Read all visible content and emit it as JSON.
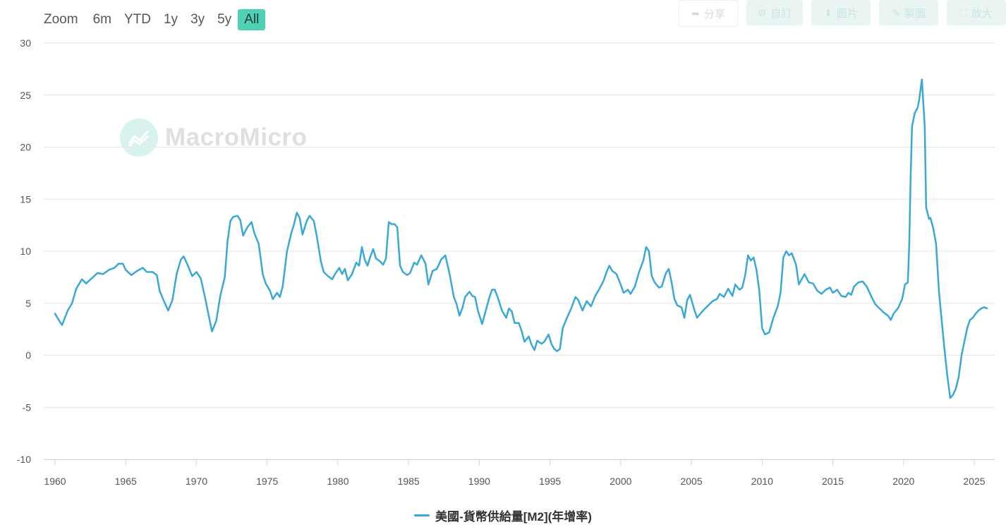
{
  "zoom": {
    "label": "Zoom",
    "buttons": [
      {
        "label": "6m",
        "active": false
      },
      {
        "label": "YTD",
        "active": false
      },
      {
        "label": "1y",
        "active": false
      },
      {
        "label": "3y",
        "active": false
      },
      {
        "label": "5y",
        "active": false
      },
      {
        "label": "All",
        "active": true
      }
    ]
  },
  "toolbar": {
    "share_label": "分享",
    "custom_label": "自訂",
    "image_label": "圖片",
    "draw_label": "製圖",
    "enlarge_label": "放大"
  },
  "watermark": {
    "text": "MacroMicro"
  },
  "colors": {
    "line": "#3aa8d6",
    "accent": "#4fd1b6",
    "grid": "#e6e6e6"
  },
  "chart_data": {
    "type": "line",
    "title": "",
    "xlabel": "",
    "ylabel": "",
    "xlim": [
      1960,
      2025.9
    ],
    "ylim": [
      -10,
      30
    ],
    "x_ticks": [
      1960,
      1965,
      1970,
      1975,
      1980,
      1985,
      1990,
      1995,
      2000,
      2005,
      2010,
      2015,
      2020,
      2025
    ],
    "y_ticks": [
      -10,
      -5,
      0,
      5,
      10,
      15,
      20,
      25,
      30
    ],
    "grid": "horizontal",
    "legend_position": "bottom-center",
    "series": [
      {
        "name": "美國-貨幣供給量[M2](年增率)",
        "color": "#3aa8d6",
        "points": [
          [
            1960.0,
            4.0
          ],
          [
            1960.3,
            3.3
          ],
          [
            1960.5,
            2.9
          ],
          [
            1960.9,
            4.3
          ],
          [
            1961.2,
            5.0
          ],
          [
            1961.5,
            6.4
          ],
          [
            1961.9,
            7.3
          ],
          [
            1962.2,
            6.9
          ],
          [
            1962.6,
            7.4
          ],
          [
            1963.0,
            7.9
          ],
          [
            1963.4,
            7.8
          ],
          [
            1963.8,
            8.2
          ],
          [
            1964.2,
            8.4
          ],
          [
            1964.5,
            8.8
          ],
          [
            1964.8,
            8.8
          ],
          [
            1965.0,
            8.2
          ],
          [
            1965.4,
            7.7
          ],
          [
            1965.8,
            8.1
          ],
          [
            1966.2,
            8.4
          ],
          [
            1966.5,
            8.0
          ],
          [
            1966.9,
            8.0
          ],
          [
            1967.2,
            7.7
          ],
          [
            1967.4,
            6.2
          ],
          [
            1967.7,
            5.2
          ],
          [
            1968.0,
            4.3
          ],
          [
            1968.3,
            5.3
          ],
          [
            1968.6,
            7.8
          ],
          [
            1968.9,
            9.2
          ],
          [
            1969.1,
            9.5
          ],
          [
            1969.4,
            8.6
          ],
          [
            1969.7,
            7.6
          ],
          [
            1970.0,
            8.0
          ],
          [
            1970.3,
            7.4
          ],
          [
            1970.6,
            5.6
          ],
          [
            1970.9,
            3.6
          ],
          [
            1971.1,
            2.3
          ],
          [
            1971.4,
            3.3
          ],
          [
            1971.7,
            5.8
          ],
          [
            1972.0,
            7.5
          ],
          [
            1972.2,
            11.0
          ],
          [
            1972.4,
            12.9
          ],
          [
            1972.6,
            13.3
          ],
          [
            1972.9,
            13.4
          ],
          [
            1973.1,
            13.0
          ],
          [
            1973.3,
            11.5
          ],
          [
            1973.6,
            12.3
          ],
          [
            1973.9,
            12.8
          ],
          [
            1974.1,
            11.7
          ],
          [
            1974.4,
            10.7
          ],
          [
            1974.7,
            7.7
          ],
          [
            1974.9,
            6.9
          ],
          [
            1975.2,
            6.2
          ],
          [
            1975.4,
            5.4
          ],
          [
            1975.7,
            6.0
          ],
          [
            1975.9,
            5.6
          ],
          [
            1976.1,
            6.6
          ],
          [
            1976.4,
            10.0
          ],
          [
            1976.7,
            11.7
          ],
          [
            1976.9,
            12.6
          ],
          [
            1977.1,
            13.7
          ],
          [
            1977.3,
            13.2
          ],
          [
            1977.5,
            11.6
          ],
          [
            1977.8,
            12.9
          ],
          [
            1978.0,
            13.4
          ],
          [
            1978.3,
            12.9
          ],
          [
            1978.5,
            11.5
          ],
          [
            1978.8,
            9.0
          ],
          [
            1979.0,
            8.0
          ],
          [
            1979.3,
            7.6
          ],
          [
            1979.6,
            7.3
          ],
          [
            1979.8,
            7.8
          ],
          [
            1980.1,
            8.4
          ],
          [
            1980.3,
            7.8
          ],
          [
            1980.5,
            8.3
          ],
          [
            1980.7,
            7.2
          ],
          [
            1981.0,
            7.8
          ],
          [
            1981.3,
            8.9
          ],
          [
            1981.5,
            8.6
          ],
          [
            1981.7,
            10.4
          ],
          [
            1981.9,
            9.2
          ],
          [
            1982.1,
            8.6
          ],
          [
            1982.3,
            9.5
          ],
          [
            1982.5,
            10.2
          ],
          [
            1982.7,
            9.3
          ],
          [
            1983.0,
            9.0
          ],
          [
            1983.2,
            8.7
          ],
          [
            1983.4,
            9.3
          ],
          [
            1983.6,
            12.8
          ],
          [
            1983.8,
            12.6
          ],
          [
            1984.0,
            12.6
          ],
          [
            1984.2,
            12.3
          ],
          [
            1984.4,
            8.6
          ],
          [
            1984.6,
            8.0
          ],
          [
            1984.9,
            7.7
          ],
          [
            1985.1,
            7.9
          ],
          [
            1985.4,
            8.9
          ],
          [
            1985.6,
            8.7
          ],
          [
            1985.9,
            9.6
          ],
          [
            1986.2,
            8.8
          ],
          [
            1986.4,
            6.8
          ],
          [
            1986.7,
            8.1
          ],
          [
            1987.0,
            8.3
          ],
          [
            1987.3,
            9.2
          ],
          [
            1987.6,
            9.6
          ],
          [
            1987.9,
            7.8
          ],
          [
            1988.2,
            5.6
          ],
          [
            1988.4,
            4.9
          ],
          [
            1988.6,
            3.8
          ],
          [
            1988.8,
            4.5
          ],
          [
            1989.0,
            5.6
          ],
          [
            1989.3,
            6.1
          ],
          [
            1989.5,
            5.7
          ],
          [
            1989.7,
            5.6
          ],
          [
            1989.9,
            4.3
          ],
          [
            1990.2,
            3.0
          ],
          [
            1990.4,
            4.0
          ],
          [
            1990.7,
            5.5
          ],
          [
            1990.9,
            6.3
          ],
          [
            1991.1,
            6.3
          ],
          [
            1991.3,
            5.6
          ],
          [
            1991.6,
            4.3
          ],
          [
            1991.9,
            3.6
          ],
          [
            1992.1,
            4.5
          ],
          [
            1992.3,
            4.2
          ],
          [
            1992.5,
            3.1
          ],
          [
            1992.8,
            3.1
          ],
          [
            1993.0,
            2.3
          ],
          [
            1993.2,
            1.3
          ],
          [
            1993.5,
            1.8
          ],
          [
            1993.7,
            1.0
          ],
          [
            1993.9,
            0.5
          ],
          [
            1994.1,
            1.4
          ],
          [
            1994.4,
            1.1
          ],
          [
            1994.6,
            1.3
          ],
          [
            1994.9,
            2.0
          ],
          [
            1995.1,
            1.1
          ],
          [
            1995.3,
            0.6
          ],
          [
            1995.5,
            0.4
          ],
          [
            1995.7,
            0.6
          ],
          [
            1995.9,
            2.6
          ],
          [
            1996.2,
            3.6
          ],
          [
            1996.5,
            4.5
          ],
          [
            1996.8,
            5.6
          ],
          [
            1997.0,
            5.3
          ],
          [
            1997.3,
            4.3
          ],
          [
            1997.6,
            5.2
          ],
          [
            1997.9,
            4.7
          ],
          [
            1998.2,
            5.7
          ],
          [
            1998.5,
            6.4
          ],
          [
            1998.8,
            7.2
          ],
          [
            1999.0,
            8.0
          ],
          [
            1999.2,
            8.6
          ],
          [
            1999.4,
            8.1
          ],
          [
            1999.7,
            7.8
          ],
          [
            2000.0,
            6.8
          ],
          [
            2000.2,
            6.0
          ],
          [
            2000.5,
            6.3
          ],
          [
            2000.7,
            5.9
          ],
          [
            2001.0,
            6.6
          ],
          [
            2001.3,
            8.0
          ],
          [
            2001.6,
            9.1
          ],
          [
            2001.8,
            10.4
          ],
          [
            2002.0,
            10.0
          ],
          [
            2002.2,
            7.6
          ],
          [
            2002.4,
            7.0
          ],
          [
            2002.7,
            6.5
          ],
          [
            2002.9,
            6.6
          ],
          [
            2003.2,
            7.9
          ],
          [
            2003.4,
            8.3
          ],
          [
            2003.6,
            7.0
          ],
          [
            2003.8,
            5.4
          ],
          [
            2004.0,
            4.8
          ],
          [
            2004.3,
            4.6
          ],
          [
            2004.5,
            3.6
          ],
          [
            2004.7,
            5.3
          ],
          [
            2004.9,
            5.8
          ],
          [
            2005.2,
            4.4
          ],
          [
            2005.4,
            3.6
          ],
          [
            2005.7,
            4.1
          ],
          [
            2005.9,
            4.4
          ],
          [
            2006.2,
            4.8
          ],
          [
            2006.5,
            5.2
          ],
          [
            2006.8,
            5.4
          ],
          [
            2007.0,
            5.9
          ],
          [
            2007.3,
            5.6
          ],
          [
            2007.6,
            6.4
          ],
          [
            2007.9,
            5.7
          ],
          [
            2008.1,
            6.8
          ],
          [
            2008.4,
            6.3
          ],
          [
            2008.6,
            6.5
          ],
          [
            2008.8,
            7.7
          ],
          [
            2009.0,
            9.6
          ],
          [
            2009.2,
            9.1
          ],
          [
            2009.4,
            9.4
          ],
          [
            2009.6,
            8.2
          ],
          [
            2009.8,
            6.2
          ],
          [
            2010.0,
            2.6
          ],
          [
            2010.2,
            2.0
          ],
          [
            2010.5,
            2.2
          ],
          [
            2010.8,
            3.6
          ],
          [
            2011.1,
            4.7
          ],
          [
            2011.3,
            6.0
          ],
          [
            2011.5,
            9.4
          ],
          [
            2011.7,
            10.0
          ],
          [
            2011.9,
            9.6
          ],
          [
            2012.1,
            9.8
          ],
          [
            2012.4,
            8.7
          ],
          [
            2012.6,
            6.8
          ],
          [
            2012.8,
            7.3
          ],
          [
            2013.0,
            7.8
          ],
          [
            2013.3,
            7.0
          ],
          [
            2013.6,
            6.9
          ],
          [
            2013.9,
            6.2
          ],
          [
            2014.2,
            5.9
          ],
          [
            2014.5,
            6.3
          ],
          [
            2014.8,
            6.5
          ],
          [
            2015.0,
            6.0
          ],
          [
            2015.3,
            6.3
          ],
          [
            2015.6,
            5.7
          ],
          [
            2015.9,
            5.6
          ],
          [
            2016.1,
            6.0
          ],
          [
            2016.3,
            5.8
          ],
          [
            2016.5,
            6.6
          ],
          [
            2016.8,
            7.0
          ],
          [
            2017.1,
            7.1
          ],
          [
            2017.4,
            6.6
          ],
          [
            2017.7,
            5.7
          ],
          [
            2018.0,
            4.9
          ],
          [
            2018.3,
            4.5
          ],
          [
            2018.6,
            4.1
          ],
          [
            2018.9,
            3.8
          ],
          [
            2019.1,
            3.4
          ],
          [
            2019.3,
            4.0
          ],
          [
            2019.6,
            4.5
          ],
          [
            2019.9,
            5.4
          ],
          [
            2020.1,
            6.8
          ],
          [
            2020.3,
            7.0
          ],
          [
            2020.4,
            10.5
          ],
          [
            2020.5,
            17.0
          ],
          [
            2020.6,
            22.0
          ],
          [
            2020.8,
            23.3
          ],
          [
            2021.0,
            23.8
          ],
          [
            2021.1,
            24.5
          ],
          [
            2021.3,
            26.5
          ],
          [
            2021.5,
            22.0
          ],
          [
            2021.6,
            14.2
          ],
          [
            2021.8,
            13.1
          ],
          [
            2021.9,
            13.2
          ],
          [
            2022.1,
            12.2
          ],
          [
            2022.3,
            10.7
          ],
          [
            2022.5,
            6.2
          ],
          [
            2022.7,
            3.3
          ],
          [
            2022.9,
            0.5
          ],
          [
            2023.1,
            -2.0
          ],
          [
            2023.3,
            -4.1
          ],
          [
            2023.5,
            -3.8
          ],
          [
            2023.7,
            -3.2
          ],
          [
            2023.9,
            -2.1
          ],
          [
            2024.1,
            0.0
          ],
          [
            2024.3,
            1.3
          ],
          [
            2024.5,
            2.6
          ],
          [
            2024.7,
            3.4
          ],
          [
            2024.9,
            3.6
          ],
          [
            2025.1,
            4.0
          ],
          [
            2025.3,
            4.3
          ],
          [
            2025.5,
            4.5
          ],
          [
            2025.7,
            4.6
          ],
          [
            2025.9,
            4.5
          ]
        ]
      }
    ]
  }
}
